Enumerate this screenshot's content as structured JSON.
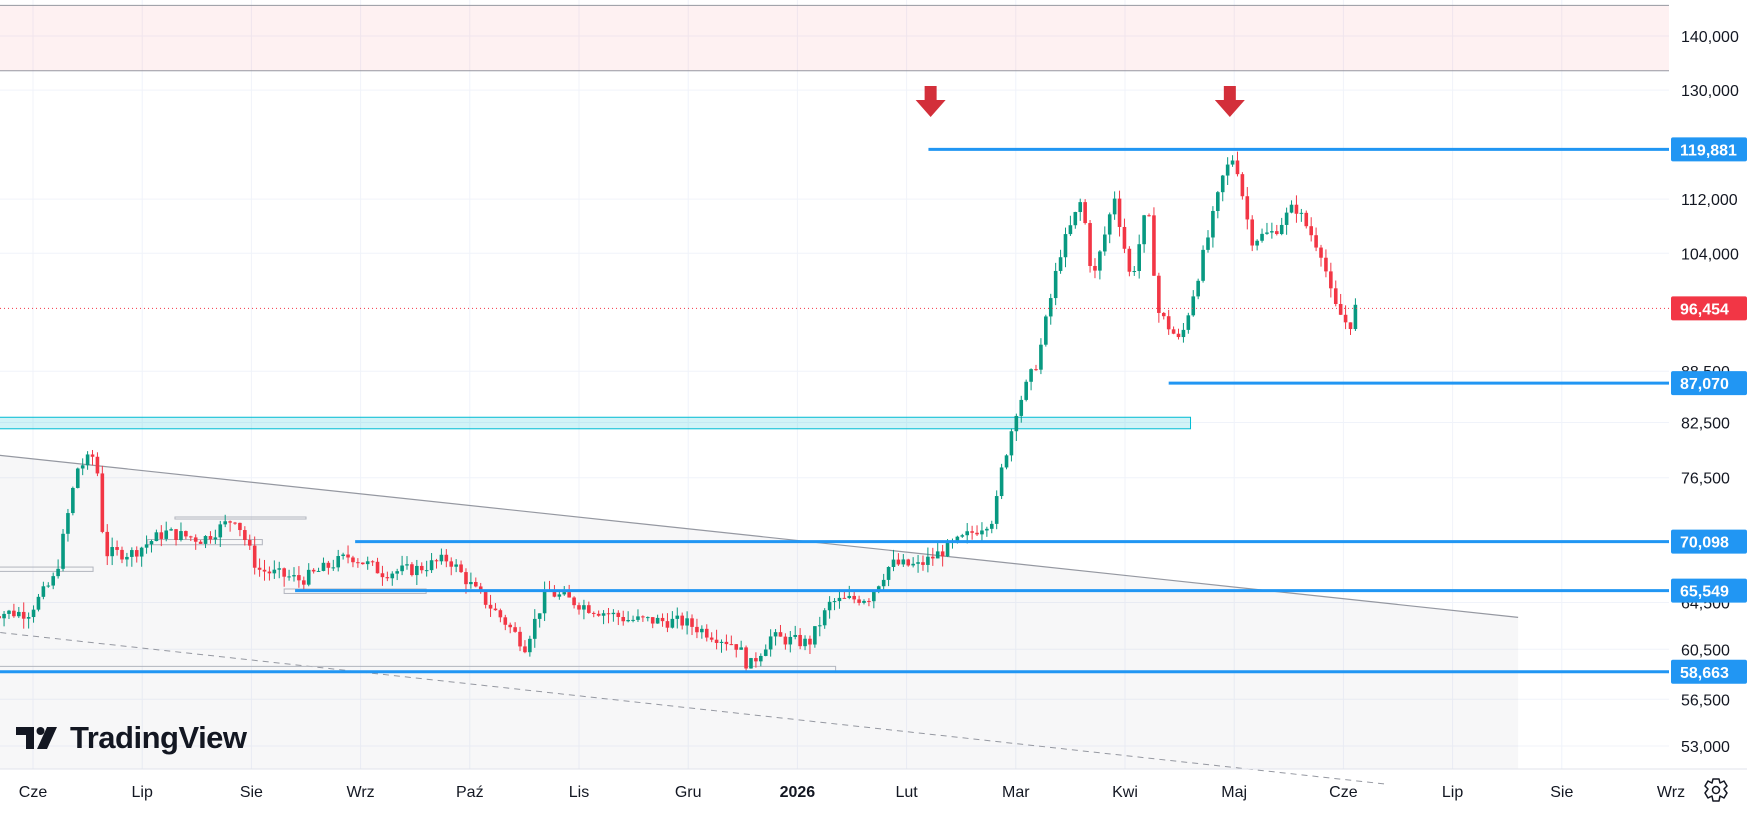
{
  "branding": {
    "logo_text": "TradingView"
  },
  "chart_data": {
    "type": "candlestick",
    "title": "",
    "x_ticks": [
      "Cze",
      "Lip",
      "Sie",
      "Wrz",
      "Paź",
      "Lis",
      "Gru",
      "2026",
      "Lut",
      "Mar",
      "Kwi",
      "Maj",
      "Cze",
      "Lip",
      "Sie",
      "Wrz"
    ],
    "y_ticks": [
      "140,000",
      "130,000",
      "112,000",
      "104,000",
      "88,500",
      "82,500",
      "76,500",
      "64,500",
      "60,500",
      "56,500",
      "53,000"
    ],
    "y_scale": "log",
    "ylim": [
      50500,
      146000
    ],
    "current_price": {
      "value": 96454,
      "label": "96,454",
      "color": "#f23645"
    },
    "horizontal_levels": [
      {
        "value": 119881,
        "label": "119,881",
        "color": "#2196f3",
        "x_start": 8.2
      },
      {
        "value": 87070,
        "label": "87,070",
        "color": "#2196f3",
        "x_start": 10.4
      },
      {
        "value": 70098,
        "label": "70,098",
        "color": "#2196f3",
        "x_start": 2.95
      },
      {
        "value": 65549,
        "label": "65,549",
        "color": "#2196f3",
        "x_start": 2.4
      },
      {
        "value": 58663,
        "label": "58,663",
        "color": "#2196f3",
        "x_start": -0.4
      }
    ],
    "resistance_zone": {
      "low": 133500,
      "high": 146000,
      "color": "#f23645"
    },
    "support_zone": {
      "low": 81800,
      "high": 83100,
      "x_start": -0.4,
      "x_end": 10.6,
      "color": "#00bcd4"
    },
    "trendline": {
      "from": {
        "x": -0.4,
        "y": 79000
      },
      "to": {
        "x": 13.6,
        "y": 63200
      }
    },
    "dashed_line": {
      "from": {
        "x": -0.4,
        "y": 62000
      },
      "to": {
        "x": 12.4,
        "y": 50300
      }
    },
    "gray_box": {
      "x_start": -0.4,
      "x_end": 13.6
    },
    "arrows": [
      {
        "x": 8.22,
        "color": "#d32f3a"
      },
      {
        "x": 10.96,
        "color": "#d32f3a"
      }
    ],
    "up_color": "#089981",
    "down_color": "#f23645",
    "candle_anchors": [
      {
        "x": -0.4,
        "y": 63600
      },
      {
        "x": 0.0,
        "y": 63600
      },
      {
        "x": 0.25,
        "y": 66800
      },
      {
        "x": 0.45,
        "y": 77500
      },
      {
        "x": 0.62,
        "y": 79000
      },
      {
        "x": 0.7,
        "y": 69000
      },
      {
        "x": 0.95,
        "y": 69000
      },
      {
        "x": 1.25,
        "y": 71000
      },
      {
        "x": 1.6,
        "y": 70300
      },
      {
        "x": 1.9,
        "y": 72500
      },
      {
        "x": 2.1,
        "y": 67500
      },
      {
        "x": 2.5,
        "y": 66500
      },
      {
        "x": 2.95,
        "y": 68800
      },
      {
        "x": 3.25,
        "y": 67200
      },
      {
        "x": 3.55,
        "y": 67500
      },
      {
        "x": 3.85,
        "y": 68500
      },
      {
        "x": 4.1,
        "y": 65500
      },
      {
        "x": 4.35,
        "y": 63000
      },
      {
        "x": 4.55,
        "y": 60800
      },
      {
        "x": 4.75,
        "y": 65500
      },
      {
        "x": 5.15,
        "y": 64000
      },
      {
        "x": 5.5,
        "y": 63000
      },
      {
        "x": 6.0,
        "y": 62800
      },
      {
        "x": 6.5,
        "y": 60800
      },
      {
        "x": 6.6,
        "y": 59000
      },
      {
        "x": 6.8,
        "y": 61500
      },
      {
        "x": 7.15,
        "y": 61000
      },
      {
        "x": 7.35,
        "y": 64500
      },
      {
        "x": 7.7,
        "y": 65000
      },
      {
        "x": 7.9,
        "y": 68000
      },
      {
        "x": 8.15,
        "y": 67800
      },
      {
        "x": 8.55,
        "y": 70300
      },
      {
        "x": 8.85,
        "y": 72500
      },
      {
        "x": 8.9,
        "y": 76500
      },
      {
        "x": 9.05,
        "y": 84000
      },
      {
        "x": 9.25,
        "y": 90000
      },
      {
        "x": 9.45,
        "y": 104000
      },
      {
        "x": 9.65,
        "y": 112000
      },
      {
        "x": 9.75,
        "y": 100000
      },
      {
        "x": 9.95,
        "y": 112500
      },
      {
        "x": 10.1,
        "y": 100000
      },
      {
        "x": 10.25,
        "y": 111000
      },
      {
        "x": 10.35,
        "y": 96000
      },
      {
        "x": 10.55,
        "y": 92000
      },
      {
        "x": 10.8,
        "y": 106000
      },
      {
        "x": 10.95,
        "y": 116000
      },
      {
        "x": 11.05,
        "y": 119000
      },
      {
        "x": 11.2,
        "y": 106000
      },
      {
        "x": 11.4,
        "y": 107000
      },
      {
        "x": 11.6,
        "y": 111000
      },
      {
        "x": 11.85,
        "y": 104000
      },
      {
        "x": 11.95,
        "y": 97000
      },
      {
        "x": 12.1,
        "y": 94000
      },
      {
        "x": 12.15,
        "y": 96454
      }
    ]
  }
}
